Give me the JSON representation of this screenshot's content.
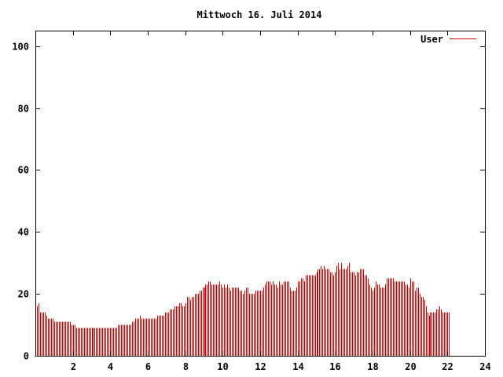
{
  "chart_data": {
    "type": "bar",
    "title": "Mittwoch 16. Juli 2014",
    "xlabel": "",
    "ylabel": "",
    "xlim": [
      0,
      24
    ],
    "ylim": [
      0,
      105
    ],
    "x_ticks": [
      2,
      4,
      6,
      8,
      10,
      12,
      14,
      16,
      18,
      20,
      22,
      24
    ],
    "y_ticks": [
      0,
      20,
      40,
      60,
      80,
      100
    ],
    "y_tick_labels": [
      "0",
      "20",
      "40",
      "60",
      "80",
      "100"
    ],
    "x_tick_labels": [
      "2",
      "4",
      "6",
      "8",
      "10",
      "12",
      "14",
      "16",
      "18",
      "20",
      "22",
      "24"
    ],
    "grid": false,
    "legend": {
      "placement": "top-right"
    },
    "series": [
      {
        "name": "User",
        "color": "#cc0000",
        "sample_interval_minutes": 5,
        "values": [
          17,
          16,
          17,
          14,
          14,
          14,
          14,
          13,
          12,
          12,
          12,
          12,
          11,
          11,
          11,
          11,
          11,
          11,
          11,
          11,
          11,
          11,
          11,
          10,
          10,
          10,
          9,
          9,
          9,
          9,
          9,
          9,
          9,
          9,
          9,
          9,
          9,
          9,
          9,
          9,
          9,
          9,
          9,
          9,
          9,
          9,
          9,
          9,
          9,
          9,
          9,
          9,
          9,
          10,
          10,
          10,
          10,
          10,
          10,
          10,
          10,
          10,
          11,
          11,
          12,
          12,
          12,
          13,
          12,
          12,
          12,
          12,
          12,
          12,
          12,
          12,
          12,
          12,
          13,
          13,
          13,
          13,
          13,
          14,
          14,
          14,
          15,
          15,
          15,
          16,
          16,
          16,
          17,
          17,
          16,
          16,
          17,
          19,
          19,
          18,
          19,
          19,
          20,
          20,
          20,
          21,
          21,
          22,
          22,
          23,
          23,
          24,
          24,
          23,
          23,
          23,
          23,
          23,
          24,
          23,
          22,
          23,
          22,
          23,
          22,
          21,
          22,
          22,
          22,
          22,
          22,
          21,
          21,
          20,
          21,
          22,
          22,
          20,
          20,
          20,
          20,
          21,
          21,
          21,
          21,
          21,
          22,
          23,
          24,
          24,
          24,
          23,
          24,
          23,
          23,
          22,
          24,
          23,
          23,
          24,
          24,
          24,
          24,
          22,
          21,
          21,
          21,
          22,
          24,
          24,
          25,
          25,
          24,
          26,
          26,
          26,
          26,
          26,
          26,
          26,
          27,
          28,
          28,
          29,
          28,
          29,
          28,
          28,
          28,
          27,
          27,
          26,
          27,
          29,
          30,
          28,
          30,
          28,
          28,
          28,
          29,
          30,
          27,
          27,
          27,
          26,
          27,
          27,
          28,
          28,
          28,
          26,
          26,
          25,
          23,
          22,
          21,
          22,
          24,
          23,
          23,
          22,
          22,
          22,
          23,
          25,
          25,
          25,
          25,
          25,
          24,
          24,
          24,
          24,
          24,
          24,
          24,
          23,
          23,
          22,
          25,
          24,
          24,
          21,
          22,
          22,
          20,
          19,
          19,
          18,
          16,
          14,
          13,
          14,
          14,
          14,
          14,
          15,
          15,
          16,
          15,
          14,
          14,
          14,
          14,
          14
        ]
      }
    ]
  }
}
